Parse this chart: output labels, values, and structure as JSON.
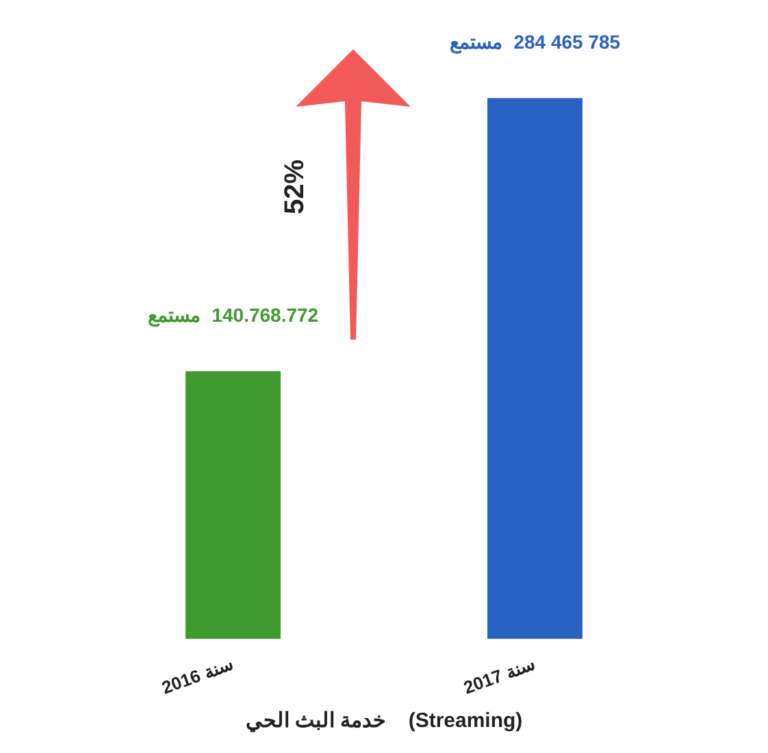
{
  "chart_data": {
    "type": "bar",
    "xlabel": "خدمة البث الحي    (Streaming)",
    "categories": [
      "سنة 2016",
      "سنة 2017"
    ],
    "values": [
      140768772,
      284465785
    ],
    "colors": [
      "#3f9a2f",
      "#2a62c4"
    ],
    "value_labels": [
      "مستمع  140.768.772",
      "مستمع  284 465 785"
    ],
    "annotations": [
      "52%"
    ],
    "grid": false,
    "legend": false
  }
}
